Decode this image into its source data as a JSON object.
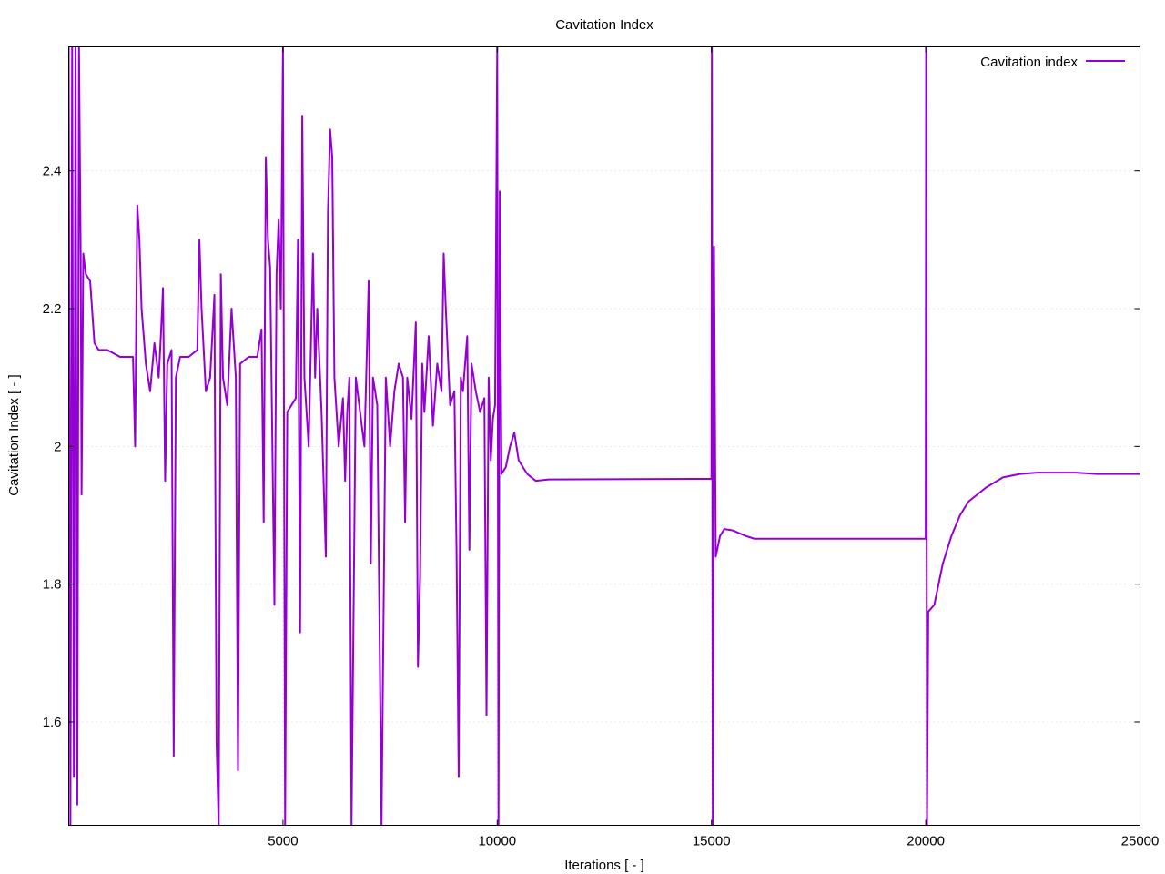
{
  "chart_data": {
    "type": "line",
    "title": "Cavitation Index",
    "xlabel": "Iterations [ - ]",
    "ylabel": "Cavitation Index [ - ]",
    "xlim": [
      0,
      25000
    ],
    "ylim": [
      1.45,
      2.58
    ],
    "xticks": [
      5000,
      10000,
      15000,
      20000,
      25000
    ],
    "xtick_labels": [
      "5000",
      "10000",
      "15000",
      "20000",
      "25000"
    ],
    "yticks": [
      1.6,
      1.8,
      2.0,
      2.2,
      2.4
    ],
    "ytick_labels": [
      "1.6",
      "1.8",
      "2",
      "2.2",
      "2.4"
    ],
    "grid": true,
    "legend_position": "top-right",
    "series": [
      {
        "name": "Cavitation index",
        "color": "#9400d3",
        "points": [
          [
            0,
            2.58
          ],
          [
            40,
            1.45
          ],
          [
            80,
            2.58
          ],
          [
            120,
            1.52
          ],
          [
            160,
            2.58
          ],
          [
            200,
            1.48
          ],
          [
            240,
            2.58
          ],
          [
            280,
            2.27
          ],
          [
            300,
            1.93
          ],
          [
            340,
            2.28
          ],
          [
            400,
            2.25
          ],
          [
            500,
            2.24
          ],
          [
            600,
            2.15
          ],
          [
            700,
            2.14
          ],
          [
            900,
            2.14
          ],
          [
            1200,
            2.13
          ],
          [
            1500,
            2.13
          ],
          [
            1550,
            2.0
          ],
          [
            1600,
            2.35
          ],
          [
            1650,
            2.3
          ],
          [
            1700,
            2.2
          ],
          [
            1800,
            2.12
          ],
          [
            1900,
            2.08
          ],
          [
            2000,
            2.15
          ],
          [
            2100,
            2.1
          ],
          [
            2150,
            2.16
          ],
          [
            2200,
            2.23
          ],
          [
            2250,
            1.95
          ],
          [
            2300,
            2.12
          ],
          [
            2400,
            2.14
          ],
          [
            2450,
            1.55
          ],
          [
            2500,
            2.1
          ],
          [
            2600,
            2.13
          ],
          [
            2800,
            2.13
          ],
          [
            3000,
            2.14
          ],
          [
            3050,
            2.3
          ],
          [
            3100,
            2.2
          ],
          [
            3200,
            2.08
          ],
          [
            3300,
            2.1
          ],
          [
            3400,
            2.22
          ],
          [
            3450,
            1.57
          ],
          [
            3500,
            1.45
          ],
          [
            3550,
            2.25
          ],
          [
            3600,
            2.1
          ],
          [
            3700,
            2.06
          ],
          [
            3800,
            2.2
          ],
          [
            3900,
            2.1
          ],
          [
            3950,
            1.53
          ],
          [
            4000,
            2.12
          ],
          [
            4200,
            2.13
          ],
          [
            4400,
            2.13
          ],
          [
            4500,
            2.17
          ],
          [
            4550,
            1.89
          ],
          [
            4600,
            2.42
          ],
          [
            4650,
            2.3
          ],
          [
            4700,
            2.26
          ],
          [
            4800,
            1.77
          ],
          [
            4850,
            2.25
          ],
          [
            4900,
            2.33
          ],
          [
            4950,
            2.2
          ],
          [
            5000,
            2.58
          ],
          [
            5050,
            1.45
          ],
          [
            5100,
            2.05
          ],
          [
            5200,
            2.06
          ],
          [
            5300,
            2.07
          ],
          [
            5350,
            2.3
          ],
          [
            5400,
            1.73
          ],
          [
            5450,
            2.48
          ],
          [
            5500,
            2.1
          ],
          [
            5600,
            2.0
          ],
          [
            5700,
            2.28
          ],
          [
            5750,
            2.1
          ],
          [
            5800,
            2.2
          ],
          [
            5900,
            2.05
          ],
          [
            6000,
            1.84
          ],
          [
            6050,
            2.34
          ],
          [
            6100,
            2.46
          ],
          [
            6150,
            2.42
          ],
          [
            6200,
            2.1
          ],
          [
            6300,
            2.0
          ],
          [
            6400,
            2.07
          ],
          [
            6450,
            1.95
          ],
          [
            6500,
            2.05
          ],
          [
            6550,
            2.1
          ],
          [
            6600,
            1.45
          ],
          [
            6700,
            2.1
          ],
          [
            6800,
            2.05
          ],
          [
            6900,
            2.0
          ],
          [
            7000,
            2.24
          ],
          [
            7050,
            1.83
          ],
          [
            7100,
            2.1
          ],
          [
            7200,
            2.06
          ],
          [
            7300,
            1.45
          ],
          [
            7400,
            2.1
          ],
          [
            7500,
            2.0
          ],
          [
            7600,
            2.08
          ],
          [
            7700,
            2.12
          ],
          [
            7800,
            2.1
          ],
          [
            7850,
            1.89
          ],
          [
            7900,
            2.1
          ],
          [
            8000,
            2.04
          ],
          [
            8100,
            2.18
          ],
          [
            8150,
            1.68
          ],
          [
            8200,
            1.81
          ],
          [
            8250,
            2.12
          ],
          [
            8300,
            2.05
          ],
          [
            8400,
            2.16
          ],
          [
            8500,
            2.03
          ],
          [
            8600,
            2.12
          ],
          [
            8700,
            2.08
          ],
          [
            8750,
            2.28
          ],
          [
            8800,
            2.2
          ],
          [
            8900,
            2.06
          ],
          [
            9000,
            2.08
          ],
          [
            9050,
            1.85
          ],
          [
            9100,
            1.52
          ],
          [
            9150,
            2.1
          ],
          [
            9200,
            2.08
          ],
          [
            9300,
            2.16
          ],
          [
            9350,
            1.85
          ],
          [
            9400,
            2.12
          ],
          [
            9500,
            2.08
          ],
          [
            9600,
            2.05
          ],
          [
            9700,
            2.07
          ],
          [
            9750,
            1.61
          ],
          [
            9800,
            2.1
          ],
          [
            9850,
            1.98
          ],
          [
            9900,
            2.04
          ],
          [
            9950,
            2.06
          ],
          [
            10000,
            2.58
          ],
          [
            10030,
            1.45
          ],
          [
            10060,
            2.37
          ],
          [
            10100,
            1.96
          ],
          [
            10200,
            1.97
          ],
          [
            10300,
            2.0
          ],
          [
            10400,
            2.02
          ],
          [
            10500,
            1.98
          ],
          [
            10700,
            1.96
          ],
          [
            10900,
            1.95
          ],
          [
            11200,
            1.952
          ],
          [
            15000,
            1.953
          ],
          [
            15010,
            2.58
          ],
          [
            15030,
            1.45
          ],
          [
            15060,
            2.29
          ],
          [
            15100,
            1.84
          ],
          [
            15200,
            1.87
          ],
          [
            15300,
            1.88
          ],
          [
            15500,
            1.878
          ],
          [
            15800,
            1.87
          ],
          [
            16000,
            1.866
          ],
          [
            20000,
            1.866
          ],
          [
            20010,
            2.58
          ],
          [
            20030,
            1.45
          ],
          [
            20060,
            1.76
          ],
          [
            20200,
            1.77
          ],
          [
            20400,
            1.83
          ],
          [
            20600,
            1.87
          ],
          [
            20800,
            1.9
          ],
          [
            21000,
            1.92
          ],
          [
            21400,
            1.94
          ],
          [
            21800,
            1.955
          ],
          [
            22200,
            1.96
          ],
          [
            22600,
            1.962
          ],
          [
            23000,
            1.962
          ],
          [
            23500,
            1.962
          ],
          [
            24000,
            1.96
          ],
          [
            24500,
            1.96
          ],
          [
            25000,
            1.96
          ]
        ]
      }
    ]
  }
}
